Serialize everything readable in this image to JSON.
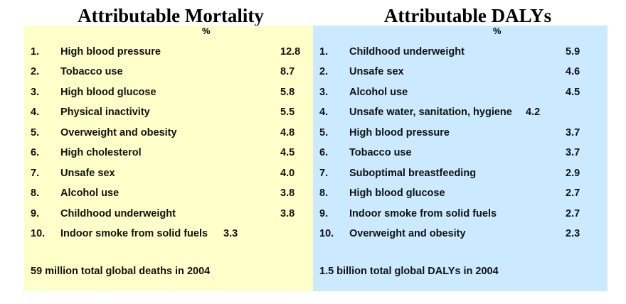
{
  "left": {
    "title": "Attributable Mortality",
    "unit": "%",
    "rows": [
      {
        "num": "1.",
        "label": "High blood pressure",
        "value": "12.8"
      },
      {
        "num": "2.",
        "label": "Tobacco use",
        "value": "8.7"
      },
      {
        "num": "3.",
        "label": "High blood glucose",
        "value": "5.8"
      },
      {
        "num": "4.",
        "label": "Physical inactivity",
        "value": "5.5"
      },
      {
        "num": "5.",
        "label": "Overweight and obesity",
        "value": "4.8"
      },
      {
        "num": "6.",
        "label": "High cholesterol",
        "value": "4.5"
      },
      {
        "num": "7.",
        "label": "Unsafe sex",
        "value": "4.0"
      },
      {
        "num": "8.",
        "label": "Alcohol use",
        "value": "3.8"
      },
      {
        "num": "9.",
        "label": "Childhood underweight",
        "value": "3.8"
      },
      {
        "num": "10.",
        "label": "Indoor smoke from solid fuels",
        "value": "3.3"
      }
    ],
    "footer": "59 million total global deaths in 2004"
  },
  "right": {
    "title": "Attributable DALYs",
    "unit": "%",
    "rows": [
      {
        "num": "1.",
        "label": "Childhood underweight",
        "value": "5.9"
      },
      {
        "num": "2.",
        "label": "Unsafe sex",
        "value": "4.6"
      },
      {
        "num": "3.",
        "label": "Alcohol use",
        "value": "4.5"
      },
      {
        "num": "4.",
        "label": "Unsafe water, sanitation, hygiene",
        "value": "4.2"
      },
      {
        "num": "5.",
        "label": "High blood pressure",
        "value": "3.7"
      },
      {
        "num": "6.",
        "label": "Tobacco use",
        "value": "3.7"
      },
      {
        "num": "7.",
        "label": "Suboptimal breastfeeding",
        "value": "2.9"
      },
      {
        "num": "8.",
        "label": "High blood glucose",
        "value": "2.7"
      },
      {
        "num": "9.",
        "label": "Indoor smoke from solid fuels",
        "value": "2.7"
      },
      {
        "num": "10.",
        "label": "Overweight and obesity",
        "value": "2.3"
      }
    ],
    "footer": "1.5 billion total global DALYs in 2004"
  },
  "colors": {
    "left_panel_bg": "#ffffc9",
    "right_panel_bg": "#cbeaff"
  }
}
